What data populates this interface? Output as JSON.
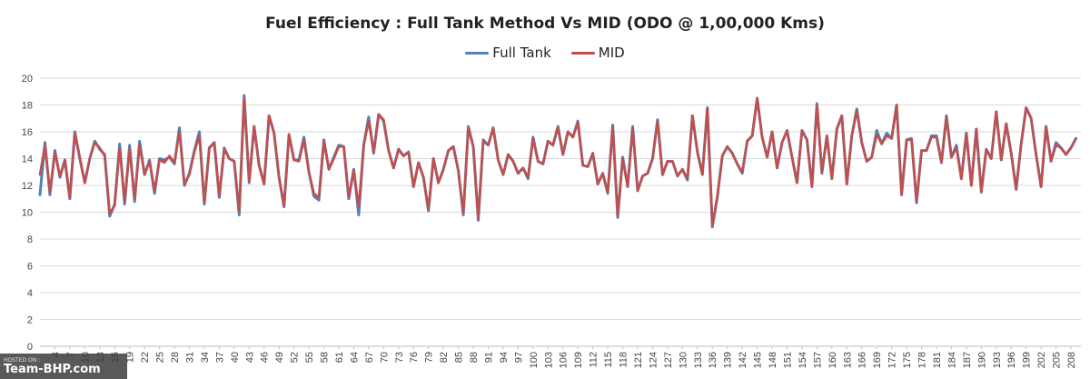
{
  "chart_data": {
    "type": "line",
    "title": "Fuel Efficiency : Full Tank Method Vs MID (ODO @ 1,00,000 Kms)",
    "xlabel": "",
    "ylabel": "",
    "ylim": [
      0,
      20
    ],
    "yticks": [
      0,
      2,
      4,
      6,
      8,
      10,
      12,
      14,
      16,
      18,
      20
    ],
    "xlim": [
      1,
      210
    ],
    "xticks": [
      4,
      7,
      10,
      13,
      16,
      19,
      22,
      25,
      28,
      31,
      34,
      37,
      40,
      43,
      46,
      49,
      52,
      55,
      58,
      61,
      64,
      67,
      70,
      73,
      76,
      79,
      82,
      85,
      88,
      91,
      94,
      97,
      100,
      103,
      106,
      109,
      112,
      115,
      118,
      121,
      124,
      127,
      130,
      133,
      136,
      139,
      142,
      145,
      148,
      151,
      154,
      157,
      160,
      163,
      166,
      169,
      172,
      175,
      178,
      181,
      184,
      187,
      190,
      193,
      196,
      199,
      202,
      205,
      208
    ],
    "grid": true,
    "legend_position": "top",
    "series": [
      {
        "name": "Full Tank",
        "color": "#4F81BD",
        "values": [
          11.3,
          15.2,
          11.3,
          14.6,
          12.6,
          13.9,
          11.0,
          16.0,
          14.0,
          12.2,
          14.0,
          15.3,
          14.7,
          14.3,
          9.7,
          10.6,
          15.1,
          10.6,
          15.0,
          10.8,
          15.3,
          12.8,
          13.9,
          11.4,
          14.0,
          13.9,
          14.1,
          13.6,
          16.3,
          12.0,
          12.9,
          14.6,
          16.0,
          10.6,
          14.8,
          15.2,
          11.1,
          14.8,
          14.0,
          13.8,
          9.8,
          18.7,
          12.2,
          16.4,
          13.5,
          12.1,
          17.2,
          15.9,
          12.6,
          10.4,
          15.8,
          13.9,
          13.9,
          15.6,
          13.0,
          11.2,
          10.9,
          15.4,
          13.2,
          14.1,
          15.0,
          14.9,
          11.0,
          13.2,
          9.8,
          15.0,
          17.1,
          14.4,
          17.3,
          16.8,
          14.6,
          13.3,
          14.7,
          14.2,
          14.5,
          11.9,
          13.7,
          12.6,
          10.1,
          14.0,
          12.2,
          13.2,
          14.6,
          14.9,
          13.1,
          9.8,
          16.4,
          14.9,
          9.4,
          15.4,
          15.0,
          16.3,
          13.9,
          12.8,
          14.3,
          13.8,
          12.9,
          13.3,
          12.5,
          15.6,
          13.8,
          13.6,
          15.3,
          15.0,
          16.4,
          14.3,
          16.0,
          15.6,
          16.8,
          13.5,
          13.4,
          14.4,
          12.1,
          12.9,
          11.4,
          16.5,
          9.6,
          14.1,
          11.9,
          16.4,
          11.6,
          12.7,
          12.9,
          14.0,
          16.9,
          12.8,
          13.8,
          13.8,
          12.7,
          13.2,
          12.4,
          17.2,
          14.5,
          12.8,
          17.8,
          8.9,
          11.1,
          14.2,
          14.9,
          14.4,
          13.6,
          12.9,
          15.3,
          15.7,
          18.5,
          15.6,
          14.1,
          16.0,
          13.3,
          15.2,
          16.1,
          14.1,
          12.2,
          16.1,
          15.4,
          11.9,
          18.1,
          12.9,
          15.7,
          12.5,
          16.2,
          17.2,
          12.1,
          15.7,
          17.7,
          15.2,
          13.8,
          14.1,
          16.1,
          15.1,
          15.9,
          15.5,
          18.0,
          11.3,
          15.4,
          15.5,
          10.7,
          14.6,
          14.6,
          15.7,
          15.7,
          13.7,
          17.2,
          14.1,
          15.0,
          12.5,
          15.9,
          12.0,
          16.2,
          11.5,
          14.7,
          14.0,
          17.5,
          13.9,
          16.6,
          14.4,
          11.7,
          15.1,
          17.8,
          17.0,
          14.3,
          11.9,
          16.4,
          13.8,
          15.2,
          14.8,
          14.3,
          14.8,
          15.5
        ]
      },
      {
        "name": "MID",
        "color": "#C0504D",
        "values": [
          12.8,
          15.0,
          11.5,
          14.5,
          12.7,
          13.9,
          11.1,
          15.9,
          14.1,
          12.2,
          14.0,
          15.2,
          14.8,
          14.2,
          9.9,
          10.5,
          14.8,
          10.8,
          14.7,
          11.0,
          15.0,
          12.8,
          13.8,
          11.6,
          13.9,
          13.7,
          14.2,
          13.7,
          16.0,
          12.1,
          12.8,
          14.5,
          15.7,
          10.7,
          14.8,
          15.2,
          11.2,
          14.7,
          14.0,
          13.8,
          10.1,
          18.5,
          12.3,
          16.4,
          13.5,
          12.1,
          17.2,
          15.9,
          12.6,
          10.5,
          15.8,
          13.9,
          13.8,
          15.4,
          13.0,
          11.4,
          11.1,
          15.4,
          13.2,
          14.0,
          14.9,
          14.9,
          11.1,
          13.1,
          10.4,
          15.0,
          16.8,
          14.5,
          17.3,
          16.9,
          14.6,
          13.3,
          14.7,
          14.2,
          14.5,
          11.9,
          13.7,
          12.6,
          10.2,
          14.0,
          12.2,
          13.2,
          14.6,
          14.9,
          13.1,
          9.9,
          16.3,
          14.9,
          9.5,
          15.3,
          15.0,
          16.3,
          13.9,
          12.8,
          14.3,
          13.8,
          12.9,
          13.3,
          12.6,
          15.5,
          13.8,
          13.6,
          15.3,
          15.0,
          16.3,
          14.3,
          16.0,
          15.6,
          16.7,
          13.5,
          13.4,
          14.4,
          12.1,
          12.9,
          11.5,
          16.4,
          9.7,
          14.0,
          11.9,
          16.3,
          11.6,
          12.7,
          12.9,
          14.0,
          16.8,
          12.8,
          13.8,
          13.8,
          12.7,
          13.2,
          12.5,
          17.2,
          14.5,
          12.8,
          17.8,
          9.0,
          11.2,
          14.2,
          14.9,
          14.4,
          13.6,
          13.0,
          15.3,
          15.7,
          18.5,
          15.6,
          14.1,
          16.0,
          13.3,
          15.2,
          16.1,
          14.1,
          12.2,
          16.1,
          15.4,
          11.9,
          18.0,
          13.0,
          15.7,
          12.5,
          16.2,
          17.2,
          12.1,
          15.7,
          17.6,
          15.2,
          13.8,
          14.1,
          15.8,
          15.1,
          15.7,
          15.5,
          18.0,
          11.3,
          15.4,
          15.4,
          10.8,
          14.6,
          14.6,
          15.6,
          15.6,
          13.7,
          17.1,
          14.1,
          14.8,
          12.5,
          15.9,
          12.0,
          16.2,
          11.5,
          14.7,
          14.0,
          17.5,
          13.9,
          16.6,
          14.4,
          11.7,
          15.1,
          17.8,
          17.0,
          14.3,
          11.9,
          16.4,
          13.8,
          15.0,
          14.8,
          14.3,
          14.8,
          15.5
        ]
      }
    ]
  },
  "watermark": {
    "small": "HOSTED ON :",
    "big": "Team-BHP.com"
  }
}
